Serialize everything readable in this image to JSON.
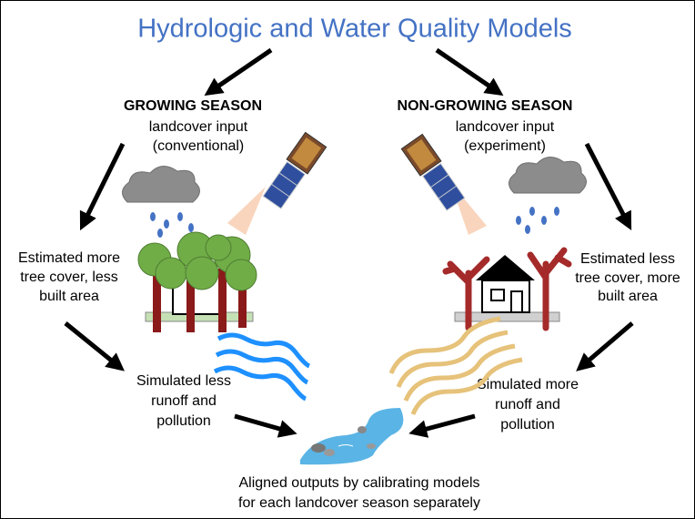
{
  "title": "Hydrologic and Water Quality Models",
  "growing": {
    "heading": "GROWING SEASON",
    "lines": [
      "landcover input",
      "(conventional)"
    ]
  },
  "non_growing": {
    "heading": "NON-GROWING SEASON",
    "lines": [
      "landcover input",
      "(experiment)"
    ]
  },
  "left_estimate": [
    "Estimated more",
    "tree cover, less",
    "built area"
  ],
  "right_estimate": [
    "Estimated less",
    "tree cover, more",
    "built area"
  ],
  "left_simulation": [
    "Simulated less",
    "runoff and",
    "pollution"
  ],
  "right_simulation": [
    "Simulated more",
    "runoff and",
    "pollution"
  ],
  "conclusion": [
    "Aligned outputs by calibrating models",
    "for each landcover season separately"
  ]
}
